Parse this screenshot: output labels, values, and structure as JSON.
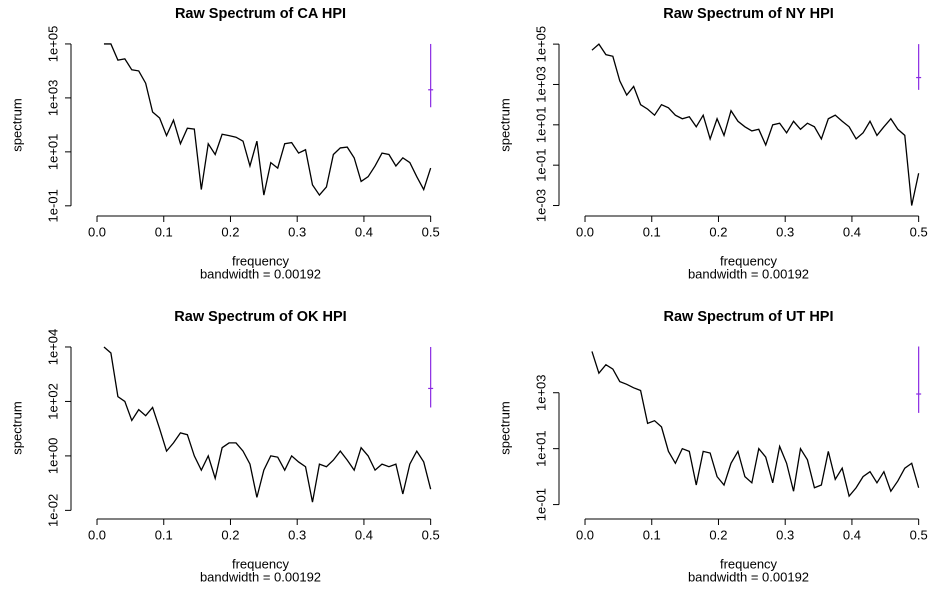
{
  "chart_data": [
    {
      "type": "line",
      "title": "Raw Spectrum of CA HPI",
      "xlabel": "frequency",
      "subtitle": "bandwidth = 0.00192",
      "ylabel": "spectrum",
      "log_y": true,
      "color": "#000000",
      "ci_color": "#8a2be2",
      "x": [
        0.0104,
        0.0208,
        0.0313,
        0.0417,
        0.0521,
        0.0625,
        0.0729,
        0.0833,
        0.0938,
        0.1042,
        0.1146,
        0.125,
        0.1354,
        0.1458,
        0.1563,
        0.1667,
        0.1771,
        0.1875,
        0.1979,
        0.2083,
        0.2188,
        0.2292,
        0.2396,
        0.25,
        0.2604,
        0.2708,
        0.2813,
        0.2917,
        0.3021,
        0.3125,
        0.3229,
        0.3333,
        0.3438,
        0.3542,
        0.3646,
        0.375,
        0.3854,
        0.3958,
        0.4063,
        0.4167,
        0.4271,
        0.4375,
        0.4479,
        0.4583,
        0.4688,
        0.4792,
        0.4896,
        0.5
      ],
      "values": [
        100000,
        100000,
        25000,
        28000,
        11000,
        10000,
        3500,
        300,
        180,
        40,
        150,
        20,
        75,
        70,
        0.4,
        20,
        8,
        45,
        40,
        35,
        25,
        3,
        25,
        0.25,
        4,
        2.5,
        20,
        22,
        9,
        12,
        0.6,
        0.25,
        0.5,
        8,
        14,
        15,
        6,
        0.8,
        1.2,
        3,
        9,
        8,
        3,
        6,
        4,
        1.2,
        0.4,
        2.5
      ],
      "ci_x": 0.5,
      "ci": [
        450,
        2000,
        100000
      ],
      "xlim": [
        -0.03,
        0.52
      ],
      "ylim": [
        0.07,
        140000
      ],
      "xticks": [
        {
          "value": 0,
          "label": "0.0"
        },
        0.1,
        0.2,
        0.3,
        0.4,
        0.5
      ],
      "yticks": [
        {
          "value": 0.1,
          "label": "1e-01"
        },
        {
          "value": 10,
          "label": "1e+01"
        },
        {
          "value": 1000,
          "label": "1e+03"
        },
        {
          "value": 100000,
          "label": "1e+05"
        }
      ]
    },
    {
      "type": "line",
      "title": "Raw Spectrum of NY HPI",
      "xlabel": "frequency",
      "subtitle": "bandwidth = 0.00192",
      "ylabel": "spectrum",
      "log_y": true,
      "color": "#000000",
      "ci_color": "#8a2be2",
      "x": [
        0.0104,
        0.0208,
        0.0313,
        0.0417,
        0.0521,
        0.0625,
        0.0729,
        0.0833,
        0.0938,
        0.1042,
        0.1146,
        0.125,
        0.1354,
        0.1458,
        0.1563,
        0.1667,
        0.1771,
        0.1875,
        0.1979,
        0.2083,
        0.2188,
        0.2292,
        0.2396,
        0.25,
        0.2604,
        0.2708,
        0.2813,
        0.2917,
        0.3021,
        0.3125,
        0.3229,
        0.3333,
        0.3438,
        0.3542,
        0.3646,
        0.375,
        0.3854,
        0.3958,
        0.4063,
        0.4167,
        0.4271,
        0.4375,
        0.4479,
        0.4583,
        0.4688,
        0.4792,
        0.4896,
        0.5
      ],
      "values": [
        50000,
        100000,
        30000,
        25000,
        1500,
        300,
        800,
        100,
        60,
        30,
        100,
        70,
        30,
        20,
        25,
        8,
        30,
        2,
        20,
        3,
        50,
        15,
        8,
        5,
        6,
        1,
        10,
        12,
        4,
        15,
        6,
        12,
        8,
        2,
        20,
        30,
        15,
        8,
        2,
        4,
        15,
        3,
        8,
        20,
        6,
        3,
        0.001,
        0.04
      ],
      "ci_x": 0.5,
      "ci": [
        540,
        2200,
        100000
      ],
      "xlim": [
        -0.03,
        0.52
      ],
      "ylim": [
        0.0006,
        160000
      ],
      "xticks": [
        {
          "value": 0,
          "label": "0.0"
        },
        0.1,
        0.2,
        0.3,
        0.4,
        0.5
      ],
      "yticks": [
        {
          "value": 0.001,
          "label": "1e-03"
        },
        {
          "value": 0.1,
          "label": "1e-01"
        },
        {
          "value": 10,
          "label": "1e+01"
        },
        {
          "value": 1000,
          "label": "1e+03"
        },
        {
          "value": 100000,
          "label": "1e+05"
        }
      ]
    },
    {
      "type": "line",
      "title": "Raw Spectrum of OK HPI",
      "xlabel": "frequency",
      "subtitle": "bandwidth = 0.00192",
      "ylabel": "spectrum",
      "log_y": true,
      "color": "#000000",
      "ci_color": "#8a2be2",
      "x": [
        0.0104,
        0.0208,
        0.0313,
        0.0417,
        0.0521,
        0.0625,
        0.0729,
        0.0833,
        0.0938,
        0.1042,
        0.1146,
        0.125,
        0.1354,
        0.1458,
        0.1563,
        0.1667,
        0.1771,
        0.1875,
        0.1979,
        0.2083,
        0.2188,
        0.2292,
        0.2396,
        0.25,
        0.2604,
        0.2708,
        0.2813,
        0.2917,
        0.3021,
        0.3125,
        0.3229,
        0.3333,
        0.3438,
        0.3542,
        0.3646,
        0.375,
        0.3854,
        0.3958,
        0.4063,
        0.4167,
        0.4271,
        0.4375,
        0.4479,
        0.4583,
        0.4688,
        0.4792,
        0.4896,
        0.5
      ],
      "values": [
        10000,
        6000,
        150,
        100,
        20,
        50,
        30,
        60,
        10,
        1.5,
        3,
        7,
        6,
        1,
        0.3,
        1,
        0.15,
        2,
        3,
        3,
        1.5,
        0.5,
        0.03,
        0.3,
        1,
        0.9,
        0.3,
        1,
        0.6,
        0.4,
        0.02,
        0.5,
        0.4,
        0.7,
        1.5,
        0.7,
        0.3,
        2,
        1,
        0.3,
        0.5,
        0.4,
        0.5,
        0.04,
        0.5,
        1.5,
        0.6,
        0.06
      ],
      "ci_x": 0.5,
      "ci": [
        60,
        300,
        10000
      ],
      "xlim": [
        -0.03,
        0.52
      ],
      "ylim": [
        0.008,
        14000
      ],
      "xticks": [
        {
          "value": 0,
          "label": "0.0"
        },
        0.1,
        0.2,
        0.3,
        0.4,
        0.5
      ],
      "yticks": [
        {
          "value": 0.01,
          "label": "1e-02"
        },
        {
          "value": 1,
          "label": "1e+00"
        },
        {
          "value": 100,
          "label": "1e+02"
        },
        {
          "value": 10000,
          "label": "1e+04"
        }
      ]
    },
    {
      "type": "line",
      "title": "Raw Spectrum of UT HPI",
      "xlabel": "frequency",
      "subtitle": "bandwidth = 0.00192",
      "ylabel": "spectrum",
      "log_y": true,
      "color": "#000000",
      "ci_color": "#8a2be2",
      "x": [
        0.0104,
        0.0208,
        0.0313,
        0.0417,
        0.0521,
        0.0625,
        0.0729,
        0.0833,
        0.0938,
        0.1042,
        0.1146,
        0.125,
        0.1354,
        0.1458,
        0.1563,
        0.1667,
        0.1771,
        0.1875,
        0.1979,
        0.2083,
        0.2188,
        0.2292,
        0.2396,
        0.25,
        0.2604,
        0.2708,
        0.2813,
        0.2917,
        0.3021,
        0.3125,
        0.3229,
        0.3333,
        0.3438,
        0.3542,
        0.3646,
        0.375,
        0.3854,
        0.3958,
        0.4063,
        0.4167,
        0.4271,
        0.4375,
        0.4479,
        0.4583,
        0.4688,
        0.4792,
        0.4896,
        0.5
      ],
      "values": [
        30000,
        5000,
        10000,
        7000,
        2500,
        2000,
        1500,
        1200,
        80,
        100,
        60,
        8,
        3,
        10,
        8,
        0.5,
        8,
        7,
        1,
        0.5,
        3,
        8,
        1,
        0.6,
        10,
        5,
        0.6,
        12,
        3,
        0.3,
        10,
        4,
        0.4,
        0.5,
        8,
        0.8,
        2,
        0.2,
        0.4,
        1,
        1.5,
        0.6,
        1.5,
        0.3,
        0.7,
        2,
        3,
        0.4
      ],
      "ci_x": 0.5,
      "ci": [
        190,
        900,
        45000
      ],
      "xlim": [
        -0.03,
        0.52
      ],
      "ylim": [
        0.05,
        60000
      ],
      "xticks": [
        {
          "value": 0,
          "label": "0.0"
        },
        0.1,
        0.2,
        0.3,
        0.4,
        0.5
      ],
      "yticks": [
        {
          "value": 0.1,
          "label": "1e-01"
        },
        {
          "value": 10,
          "label": "1e+01"
        },
        {
          "value": 1000,
          "label": "1e+03"
        }
      ]
    }
  ]
}
